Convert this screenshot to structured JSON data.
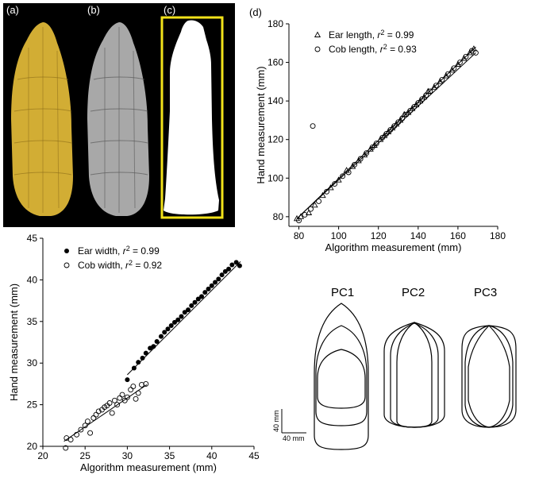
{
  "photo_panels": {
    "label_a": "(a)",
    "label_b": "(b)",
    "label_c": "(c)",
    "box_color": "#f2e21a"
  },
  "panel_d": {
    "label": "(d)"
  },
  "shape_panel": {
    "pc_labels": [
      "PC1",
      "PC2",
      "PC3"
    ],
    "scale_vertical": "40 mm",
    "scale_horizontal": "40 mm"
  },
  "chart_data": [
    {
      "type": "scatter",
      "panel": "(d)",
      "xlabel": "Algorithm measurement (mm)",
      "ylabel": "Hand measurement (mm)",
      "xlim": [
        75,
        180
      ],
      "ylim": [
        75,
        180
      ],
      "xticks": [
        "80",
        "100",
        "120",
        "140",
        "160",
        "180"
      ],
      "yticks": [
        "80",
        "100",
        "120",
        "140",
        "160",
        "180"
      ],
      "legend_position": "top-left",
      "series": [
        {
          "name": "Ear length",
          "r2_label": "= 0.99",
          "marker": "open-triangle",
          "points": [
            [
              79,
              79
            ],
            [
              81,
              80
            ],
            [
              85,
              82
            ],
            [
              88,
              86
            ],
            [
              92,
              91
            ],
            [
              96,
              95
            ],
            [
              100,
              99
            ],
            [
              104,
              104
            ],
            [
              107,
              106
            ],
            [
              110,
              109
            ],
            [
              113,
              112
            ],
            [
              116,
              115
            ],
            [
              118,
              117
            ],
            [
              121,
              120
            ],
            [
              123,
              122
            ],
            [
              125,
              124
            ],
            [
              127,
              126
            ],
            [
              129,
              128
            ],
            [
              131,
              130
            ],
            [
              133,
              133
            ],
            [
              135,
              134
            ],
            [
              137,
              136
            ],
            [
              139,
              138
            ],
            [
              141,
              140
            ],
            [
              143,
              142
            ],
            [
              145,
              145
            ],
            [
              148,
              147
            ],
            [
              151,
              150
            ],
            [
              154,
              153
            ],
            [
              157,
              156
            ],
            [
              160,
              159
            ],
            [
              163,
              162
            ],
            [
              166,
              165
            ],
            [
              168,
              167
            ]
          ],
          "fit": [
            [
              79,
              79
            ],
            [
              169,
              168
            ]
          ]
        },
        {
          "name": "Cob length",
          "r2_label": "= 0.93",
          "marker": "open-circle",
          "points": [
            [
              80,
              78
            ],
            [
              83,
              81
            ],
            [
              86,
              84
            ],
            [
              87,
              127
            ],
            [
              90,
              88
            ],
            [
              94,
              93
            ],
            [
              98,
              97
            ],
            [
              102,
              101
            ],
            [
              105,
              103
            ],
            [
              108,
              107
            ],
            [
              111,
              110
            ],
            [
              114,
              113
            ],
            [
              117,
              116
            ],
            [
              119,
              118
            ],
            [
              122,
              121
            ],
            [
              124,
              123
            ],
            [
              126,
              125
            ],
            [
              128,
              127
            ],
            [
              130,
              129
            ],
            [
              132,
              131
            ],
            [
              134,
              133
            ],
            [
              136,
              135
            ],
            [
              138,
              137
            ],
            [
              140,
              139
            ],
            [
              142,
              141
            ],
            [
              144,
              143
            ],
            [
              146,
              145
            ],
            [
              149,
              148
            ],
            [
              152,
              151
            ],
            [
              155,
              154
            ],
            [
              158,
              157
            ],
            [
              161,
              160
            ],
            [
              164,
              163
            ],
            [
              167,
              166
            ],
            [
              169,
              165
            ]
          ],
          "fit": [
            [
              80,
              80
            ],
            [
              169,
              165
            ]
          ]
        }
      ]
    },
    {
      "type": "scatter",
      "xlabel": "Algorithm measurement (mm)",
      "ylabel": "Hand measurement (mm)",
      "xlim": [
        20,
        45
      ],
      "ylim": [
        20,
        45
      ],
      "xticks": [
        "20",
        "25",
        "30",
        "35",
        "40",
        "45"
      ],
      "yticks": [
        "20",
        "25",
        "30",
        "35",
        "40",
        "45"
      ],
      "legend_position": "top-left",
      "series": [
        {
          "name": "Ear width",
          "r2_label": "= 0.99",
          "marker": "filled-circle",
          "points": [
            [
              30.0,
              28.0
            ],
            [
              30.8,
              29.4
            ],
            [
              31.3,
              30.1
            ],
            [
              31.8,
              30.6
            ],
            [
              32.2,
              31.2
            ],
            [
              32.7,
              31.8
            ],
            [
              33.1,
              32.0
            ],
            [
              33.5,
              32.6
            ],
            [
              34.0,
              33.2
            ],
            [
              34.4,
              33.7
            ],
            [
              34.8,
              34.1
            ],
            [
              35.2,
              34.5
            ],
            [
              35.6,
              34.9
            ],
            [
              36.0,
              35.2
            ],
            [
              36.4,
              35.6
            ],
            [
              36.8,
              36.1
            ],
            [
              37.2,
              36.4
            ],
            [
              37.6,
              36.9
            ],
            [
              38.0,
              37.3
            ],
            [
              38.4,
              37.7
            ],
            [
              38.8,
              38.0
            ],
            [
              39.2,
              38.5
            ],
            [
              39.6,
              38.9
            ],
            [
              40.0,
              39.3
            ],
            [
              40.4,
              39.7
            ],
            [
              40.8,
              40.1
            ],
            [
              41.2,
              40.6
            ],
            [
              41.6,
              41.0
            ],
            [
              42.0,
              41.3
            ],
            [
              42.4,
              41.8
            ],
            [
              42.9,
              42.1
            ],
            [
              43.3,
              41.7
            ]
          ],
          "fit": [
            [
              30.0,
              28.6
            ],
            [
              43.4,
              42.2
            ]
          ]
        },
        {
          "name": "Cob width",
          "r2_label": "= 0.92",
          "marker": "open-circle",
          "points": [
            [
              22.7,
              19.8
            ],
            [
              22.8,
              21.0
            ],
            [
              23.3,
              20.8
            ],
            [
              24.0,
              21.4
            ],
            [
              24.5,
              22.0
            ],
            [
              25.0,
              22.5
            ],
            [
              25.3,
              23.0
            ],
            [
              25.6,
              21.6
            ],
            [
              26.0,
              23.4
            ],
            [
              26.3,
              23.8
            ],
            [
              26.6,
              24.2
            ],
            [
              27.0,
              24.4
            ],
            [
              27.3,
              24.7
            ],
            [
              27.6,
              24.9
            ],
            [
              27.9,
              25.2
            ],
            [
              28.2,
              24.0
            ],
            [
              28.5,
              25.5
            ],
            [
              28.8,
              25.0
            ],
            [
              29.1,
              25.8
            ],
            [
              29.4,
              26.2
            ],
            [
              29.7,
              25.5
            ],
            [
              30.0,
              25.9
            ],
            [
              30.4,
              26.8
            ],
            [
              30.7,
              27.2
            ],
            [
              31.0,
              25.7
            ],
            [
              31.3,
              26.4
            ],
            [
              31.7,
              27.4
            ],
            [
              32.2,
              27.5
            ]
          ],
          "fit": [
            [
              22.5,
              20.6
            ],
            [
              32.3,
              27.4
            ]
          ]
        }
      ]
    }
  ]
}
